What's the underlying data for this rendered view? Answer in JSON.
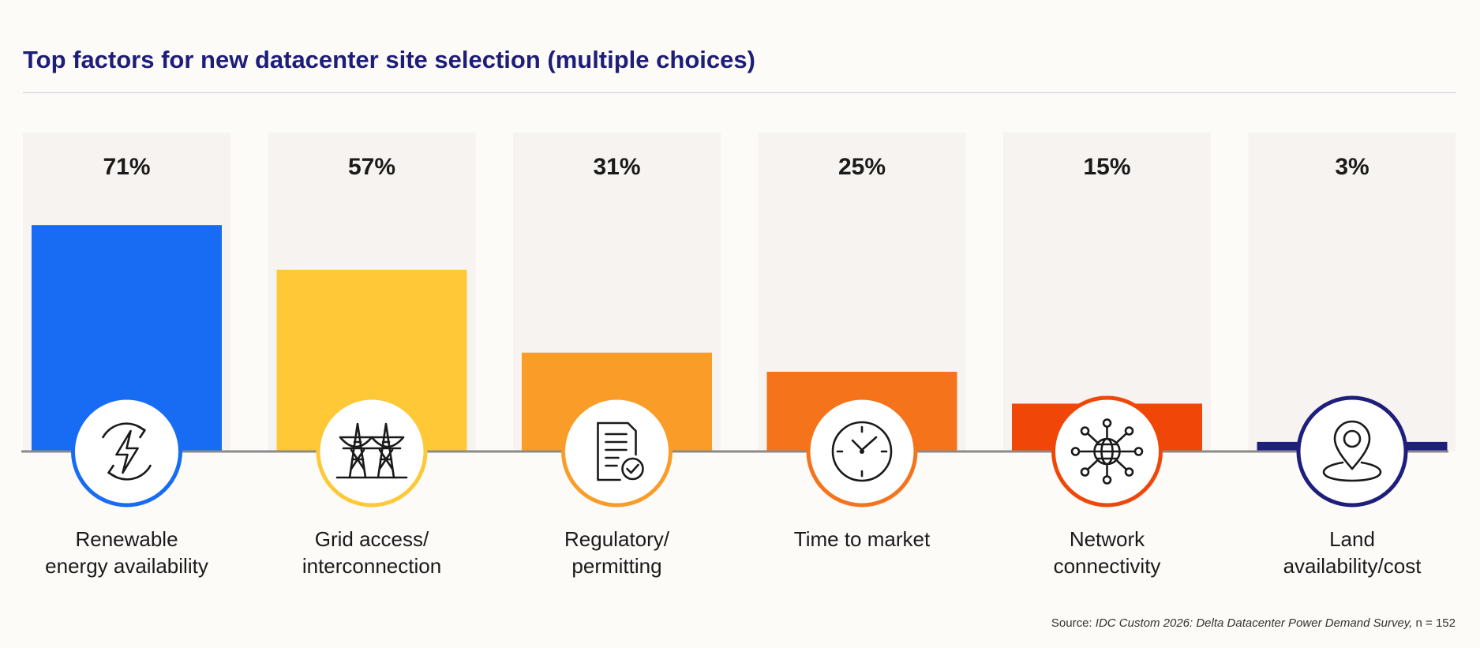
{
  "chart_data": {
    "type": "bar",
    "title": "Top factors for new datacenter site selection (multiple choices)",
    "categories": [
      [
        "Renewable",
        "energy availability"
      ],
      [
        "Grid access/",
        "interconnection"
      ],
      [
        "Regulatory/",
        "permitting"
      ],
      [
        "Time to market"
      ],
      [
        "Network",
        "connectivity"
      ],
      [
        "Land",
        "availability/cost"
      ]
    ],
    "values": [
      71,
      57,
      31,
      25,
      15,
      3
    ],
    "value_labels": [
      "71%",
      "57%",
      "31%",
      "25%",
      "15%",
      "3%"
    ],
    "colors": [
      "#176cf3",
      "#ffc837",
      "#fa9d28",
      "#f5731a",
      "#f04709",
      "#1e1e7c"
    ],
    "icons": [
      "renewable-energy-icon",
      "power-pylon-icon",
      "permit-document-icon",
      "clock-icon",
      "network-globe-icon",
      "location-pin-icon"
    ],
    "ylim": [
      0,
      100
    ],
    "legend": "none",
    "grid": false
  },
  "source": {
    "prefix": "Source: ",
    "citation": "IDC Custom 2026: Delta Datacenter Power Demand Survey,",
    "suffix": " n = 152"
  }
}
